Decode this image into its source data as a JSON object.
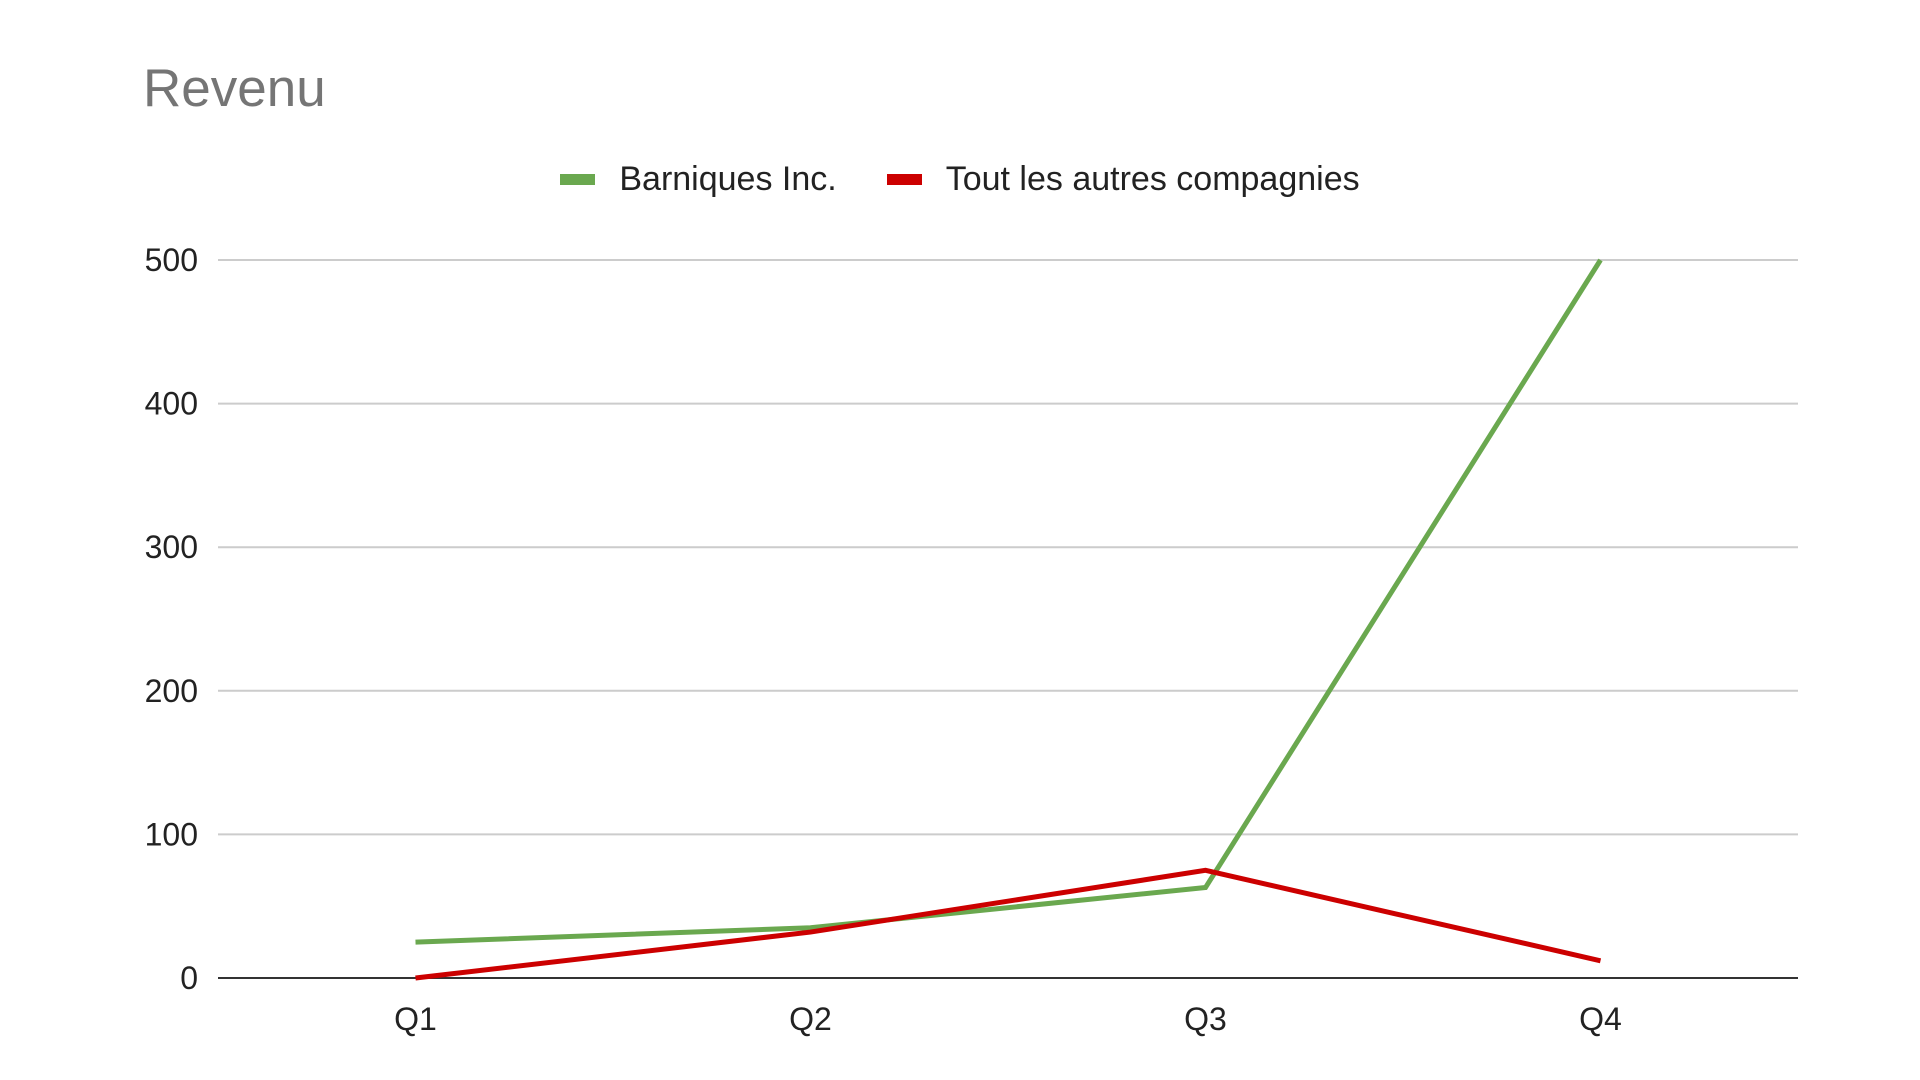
{
  "chart_data": {
    "type": "line",
    "title": "Revenu",
    "categories": [
      "Q1",
      "Q2",
      "Q3",
      "Q4"
    ],
    "series": [
      {
        "name": "Barniques Inc.",
        "values": [
          25,
          35,
          63,
          500
        ],
        "color": "#6aa84f"
      },
      {
        "name": "Tout les autres compagnies",
        "values": [
          0,
          32,
          75,
          12
        ],
        "color": "#cc0000"
      }
    ],
    "xlabel": "",
    "ylabel": "",
    "ylim": [
      0,
      500
    ],
    "yticks": [
      "0",
      "100",
      "200",
      "300",
      "400",
      "500"
    ],
    "grid": true,
    "legend_position": "top-center"
  }
}
